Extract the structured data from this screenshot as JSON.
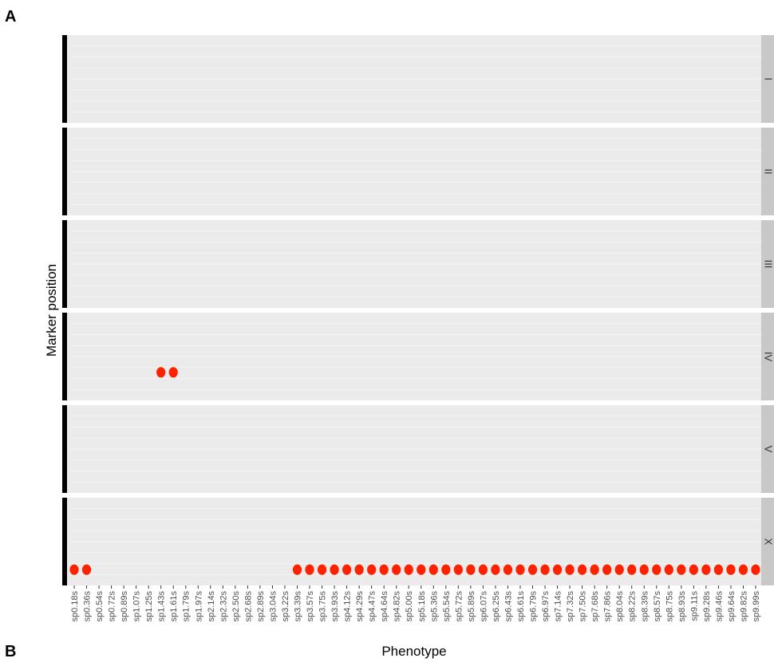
{
  "panel_labels": [
    "A",
    "B"
  ],
  "chart_data": {
    "type": "scatter",
    "title": "",
    "xlabel": "Phenotype",
    "ylabel": "Marker position",
    "grid": true,
    "facets": [
      "I",
      "II",
      "III",
      "IV",
      "V",
      "X"
    ],
    "categories": [
      "sp0.18s",
      "sp0.36s",
      "sp0.54s",
      "sp0.72s",
      "sp0.89s",
      "sp1.07s",
      "sp1.25s",
      "sp1.43s",
      "sp1.61s",
      "sp1.79s",
      "sp1.97s",
      "sp2.14s",
      "sp2.32s",
      "sp2.50s",
      "sp2.68s",
      "sp2.89s",
      "sp3.04s",
      "sp3.22s",
      "sp3.39s",
      "sp3.57s",
      "sp3.75s",
      "sp3.93s",
      "sp4.12s",
      "sp4.29s",
      "sp4.47s",
      "sp4.64s",
      "sp4.82s",
      "sp5.00s",
      "sp5.18s",
      "sp5.36s",
      "sp5.54s",
      "sp5.72s",
      "sp5.89s",
      "sp6.07s",
      "sp6.25s",
      "sp6.43s",
      "sp6.61s",
      "sp6.79s",
      "sp6.97s",
      "sp7.14s",
      "sp7.32s",
      "sp7.50s",
      "sp7.68s",
      "sp7.86s",
      "sp8.04s",
      "sp8.22s",
      "sp8.39s",
      "sp8.57s",
      "sp8.75s",
      "sp8.93s",
      "sp9.11s",
      "sp9.28s",
      "sp9.46s",
      "sp9.64s",
      "sp9.82s",
      "sp9.99s"
    ],
    "points": [
      {
        "facet": "IV",
        "x": "sp1.43s",
        "y": 0.68
      },
      {
        "facet": "IV",
        "x": "sp1.61s",
        "y": 0.68
      },
      {
        "facet": "X",
        "x": "sp0.18s",
        "y": 0.82
      },
      {
        "facet": "X",
        "x": "sp0.36s",
        "y": 0.82
      },
      {
        "facet": "X",
        "x": "sp3.39s",
        "y": 0.82
      },
      {
        "facet": "X",
        "x": "sp3.57s",
        "y": 0.82
      },
      {
        "facet": "X",
        "x": "sp3.75s",
        "y": 0.82
      },
      {
        "facet": "X",
        "x": "sp3.93s",
        "y": 0.82
      },
      {
        "facet": "X",
        "x": "sp4.12s",
        "y": 0.82
      },
      {
        "facet": "X",
        "x": "sp4.29s",
        "y": 0.82
      },
      {
        "facet": "X",
        "x": "sp4.47s",
        "y": 0.82
      },
      {
        "facet": "X",
        "x": "sp4.64s",
        "y": 0.82
      },
      {
        "facet": "X",
        "x": "sp4.82s",
        "y": 0.82
      },
      {
        "facet": "X",
        "x": "sp5.00s",
        "y": 0.82
      },
      {
        "facet": "X",
        "x": "sp5.18s",
        "y": 0.82
      },
      {
        "facet": "X",
        "x": "sp5.36s",
        "y": 0.82
      },
      {
        "facet": "X",
        "x": "sp5.54s",
        "y": 0.82
      },
      {
        "facet": "X",
        "x": "sp5.72s",
        "y": 0.82
      },
      {
        "facet": "X",
        "x": "sp5.89s",
        "y": 0.82
      },
      {
        "facet": "X",
        "x": "sp6.07s",
        "y": 0.82
      },
      {
        "facet": "X",
        "x": "sp6.25s",
        "y": 0.82
      },
      {
        "facet": "X",
        "x": "sp6.43s",
        "y": 0.82
      },
      {
        "facet": "X",
        "x": "sp6.61s",
        "y": 0.82
      },
      {
        "facet": "X",
        "x": "sp6.79s",
        "y": 0.82
      },
      {
        "facet": "X",
        "x": "sp6.97s",
        "y": 0.82
      },
      {
        "facet": "X",
        "x": "sp7.14s",
        "y": 0.82
      },
      {
        "facet": "X",
        "x": "sp7.32s",
        "y": 0.82
      },
      {
        "facet": "X",
        "x": "sp7.50s",
        "y": 0.82
      },
      {
        "facet": "X",
        "x": "sp7.68s",
        "y": 0.82
      },
      {
        "facet": "X",
        "x": "sp7.86s",
        "y": 0.82
      },
      {
        "facet": "X",
        "x": "sp8.04s",
        "y": 0.82
      },
      {
        "facet": "X",
        "x": "sp8.22s",
        "y": 0.82
      },
      {
        "facet": "X",
        "x": "sp8.39s",
        "y": 0.82
      },
      {
        "facet": "X",
        "x": "sp8.57s",
        "y": 0.82
      },
      {
        "facet": "X",
        "x": "sp8.75s",
        "y": 0.82
      },
      {
        "facet": "X",
        "x": "sp8.93s",
        "y": 0.82
      },
      {
        "facet": "X",
        "x": "sp9.11s",
        "y": 0.82
      },
      {
        "facet": "X",
        "x": "sp9.28s",
        "y": 0.82
      },
      {
        "facet": "X",
        "x": "sp9.46s",
        "y": 0.82
      },
      {
        "facet": "X",
        "x": "sp9.64s",
        "y": 0.82
      },
      {
        "facet": "X",
        "x": "sp9.82s",
        "y": 0.82
      },
      {
        "facet": "X",
        "x": "sp9.99s",
        "y": 0.82
      }
    ],
    "colors": {
      "point": "#ff2200",
      "panel_bg": "#ebebeb",
      "strip_bg": "#c8c8c8",
      "grid": "#f7f7f7",
      "marker_bar": "#000000"
    }
  }
}
